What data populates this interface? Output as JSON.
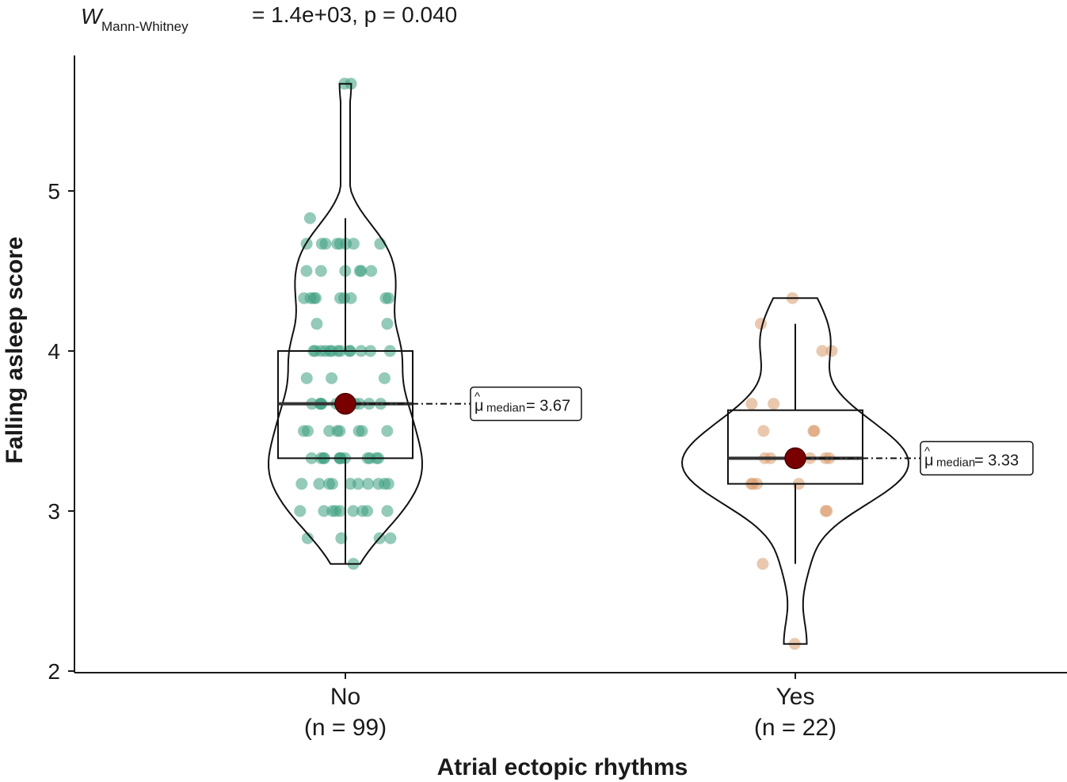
{
  "chart_data": {
    "type": "violin-box-scatter",
    "subtitle": {
      "w_symbol": "W",
      "w_subscript": "Mann-Whitney",
      "value_text": "= 1.4e+03, p = 0.040"
    },
    "xlabel": "Atrial ectopic rhythms",
    "ylabel": "Falling asleep score",
    "ylim": [
      2,
      5.83
    ],
    "yticks": [
      "2",
      "3",
      "4",
      "5"
    ],
    "grid": false,
    "groups": [
      {
        "name": "No",
        "n_label": "(n = 99)",
        "color": "#3d9e80",
        "median": 3.67,
        "q1": 3.33,
        "q3": 4.0,
        "whisker_low": 2.67,
        "whisker_high": 4.83,
        "violin_min": 2.67,
        "violin_max": 5.67,
        "median_label": {
          "prefix": "μ",
          "sub": "median",
          "suffix": " = 3.67"
        },
        "points": [
          5.67,
          5.67,
          4.83,
          4.67,
          4.67,
          4.67,
          4.67,
          4.67,
          4.67,
          4.67,
          4.67,
          4.5,
          4.5,
          4.5,
          4.5,
          4.5,
          4.5,
          4.33,
          4.33,
          4.33,
          4.33,
          4.33,
          4.33,
          4.33,
          4.33,
          4.33,
          4.17,
          4.17,
          4.0,
          4.0,
          4.0,
          4.0,
          4.0,
          4.0,
          4.0,
          4.0,
          4.0,
          4.0,
          4.0,
          4.0,
          4.0,
          3.83,
          3.83,
          3.83,
          3.67,
          3.67,
          3.67,
          3.67,
          3.67,
          3.67,
          3.67,
          3.67,
          3.67,
          3.67,
          3.67,
          3.5,
          3.5,
          3.5,
          3.5,
          3.5,
          3.5,
          3.5,
          3.5,
          3.33,
          3.33,
          3.33,
          3.33,
          3.33,
          3.33,
          3.33,
          3.33,
          3.33,
          3.33,
          3.33,
          3.33,
          3.17,
          3.17,
          3.17,
          3.17,
          3.17,
          3.17,
          3.17,
          3.17,
          3.17,
          3.17,
          3.0,
          3.0,
          3.0,
          3.0,
          3.0,
          3.0,
          3.0,
          3.0,
          3.0,
          2.83,
          2.83,
          2.83,
          2.83,
          2.67
        ]
      },
      {
        "name": "Yes",
        "n_label": "(n = 22)",
        "color": "#d99a6c",
        "median": 3.33,
        "q1": 3.17,
        "q3": 3.63,
        "whisker_low": 2.67,
        "whisker_high": 4.17,
        "violin_min": 2.17,
        "violin_max": 4.33,
        "median_label": {
          "prefix": "μ",
          "sub": "median",
          "suffix": "= 3.33"
        },
        "points": [
          4.33,
          4.17,
          4.0,
          4.0,
          3.67,
          3.67,
          3.5,
          3.5,
          3.5,
          3.33,
          3.33,
          3.33,
          3.33,
          3.33,
          3.17,
          3.17,
          3.17,
          3.17,
          3.0,
          3.0,
          2.67,
          2.17
        ]
      }
    ]
  }
}
